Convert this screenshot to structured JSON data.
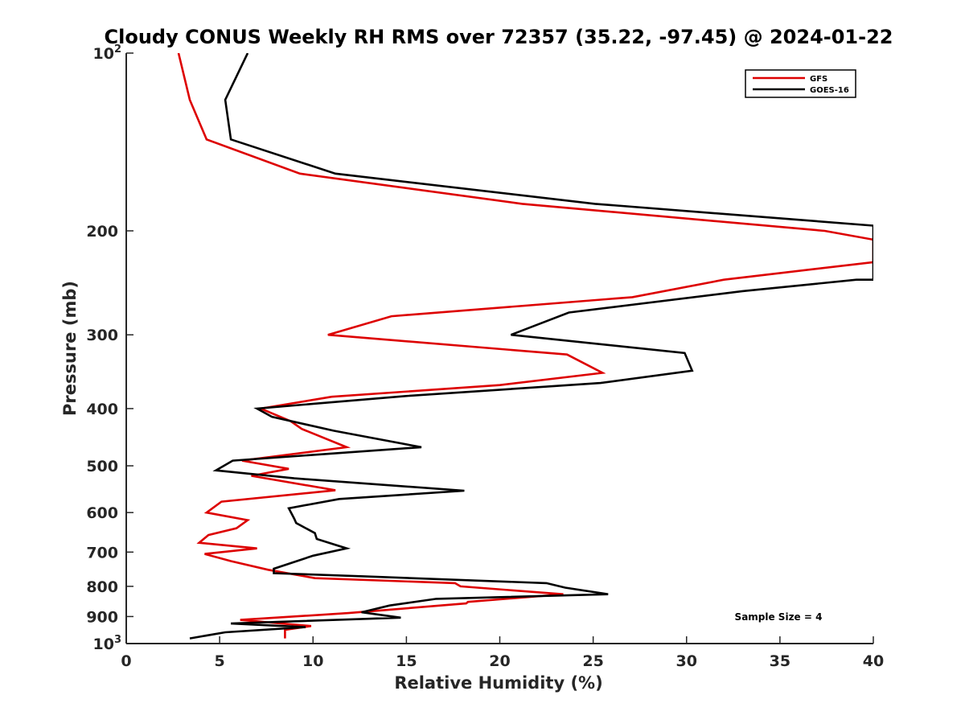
{
  "chart_data": {
    "type": "line",
    "title": "Cloudy CONUS Weekly RH RMS over 72357 (35.22, -97.45) @ 2024-01-22",
    "xlabel": "Relative Humidity (%)",
    "ylabel": "Pressure (mb)",
    "xlim": [
      0,
      40
    ],
    "ylim": [
      100,
      1000
    ],
    "y_scale": "log",
    "y_reversed": true,
    "x_ticks": [
      0,
      5,
      10,
      15,
      20,
      25,
      30,
      35,
      40
    ],
    "y_ticks": [
      {
        "value": 100,
        "label": "10",
        "sup": "2"
      },
      {
        "value": 200,
        "label": "200"
      },
      {
        "value": 300,
        "label": "300"
      },
      {
        "value": 400,
        "label": "400"
      },
      {
        "value": 500,
        "label": "500"
      },
      {
        "value": 600,
        "label": "600"
      },
      {
        "value": 700,
        "label": "700"
      },
      {
        "value": 800,
        "label": "800"
      },
      {
        "value": 900,
        "label": "900"
      },
      {
        "value": 1000,
        "label": "10",
        "sup": "3"
      }
    ],
    "grid": false,
    "legend_position": "top-right",
    "annotation": "Sample Size = 4",
    "series": [
      {
        "name": "GFS",
        "color": "#dd0000",
        "points": [
          [
            2.8,
            100
          ],
          [
            3.4,
            120
          ],
          [
            4.3,
            140
          ],
          [
            9.3,
            160
          ],
          [
            21.2,
            180
          ],
          [
            37.4,
            200
          ],
          [
            40.0,
            207
          ],
          [
            40.0,
            226
          ],
          [
            32.0,
            242
          ],
          [
            27.1,
            259
          ],
          [
            14.2,
            279
          ],
          [
            10.8,
            300
          ],
          [
            23.6,
            324
          ],
          [
            25.5,
            348
          ],
          [
            20.0,
            365
          ],
          [
            11.0,
            382
          ],
          [
            7.2,
            400
          ],
          [
            8.8,
            420
          ],
          [
            9.4,
            433
          ],
          [
            11.8,
            465
          ],
          [
            6.2,
            490
          ],
          [
            8.7,
            506
          ],
          [
            6.7,
            520
          ],
          [
            11.2,
            550
          ],
          [
            5.1,
            575
          ],
          [
            4.3,
            600
          ],
          [
            6.5,
            618
          ],
          [
            5.9,
            638
          ],
          [
            4.4,
            655
          ],
          [
            3.9,
            675
          ],
          [
            7.0,
            690
          ],
          [
            4.2,
            705
          ],
          [
            5.6,
            725
          ],
          [
            7.6,
            750
          ],
          [
            10.1,
            775
          ],
          [
            17.6,
            790
          ],
          [
            17.9,
            800
          ],
          [
            23.4,
            825
          ],
          [
            18.3,
            850
          ],
          [
            18.2,
            855
          ],
          [
            11.9,
            888
          ],
          [
            6.1,
            912
          ],
          [
            9.9,
            934
          ],
          [
            8.5,
            948
          ],
          [
            8.5,
            980
          ]
        ]
      },
      {
        "name": "GOES-16",
        "color": "#000000",
        "points": [
          [
            6.5,
            100
          ],
          [
            5.3,
            120
          ],
          [
            5.6,
            140
          ],
          [
            11.2,
            160
          ],
          [
            25.1,
            180
          ],
          [
            40.0,
            196
          ],
          [
            40.0,
            242
          ],
          [
            39.1,
            242
          ],
          [
            33.0,
            253
          ],
          [
            23.7,
            275
          ],
          [
            20.6,
            300
          ],
          [
            29.9,
            322
          ],
          [
            30.3,
            345
          ],
          [
            25.4,
            362
          ],
          [
            14.9,
            381
          ],
          [
            7.0,
            400
          ],
          [
            7.8,
            413
          ],
          [
            11.1,
            436
          ],
          [
            15.8,
            465
          ],
          [
            5.7,
            490
          ],
          [
            4.8,
            509
          ],
          [
            9.0,
            525
          ],
          [
            18.1,
            551
          ],
          [
            11.4,
            569
          ],
          [
            8.7,
            590
          ],
          [
            9.0,
            615
          ],
          [
            9.1,
            625
          ],
          [
            10.1,
            650
          ],
          [
            10.2,
            665
          ],
          [
            11.8,
            690
          ],
          [
            10.0,
            710
          ],
          [
            7.9,
            747
          ],
          [
            7.9,
            760
          ],
          [
            13.0,
            770
          ],
          [
            22.5,
            790
          ],
          [
            23.5,
            804
          ],
          [
            25.8,
            825
          ],
          [
            16.6,
            840
          ],
          [
            14.1,
            862
          ],
          [
            12.6,
            885
          ],
          [
            14.7,
            904
          ],
          [
            5.6,
            925
          ],
          [
            9.6,
            938
          ],
          [
            5.3,
            957
          ],
          [
            3.4,
            980
          ]
        ]
      }
    ]
  }
}
